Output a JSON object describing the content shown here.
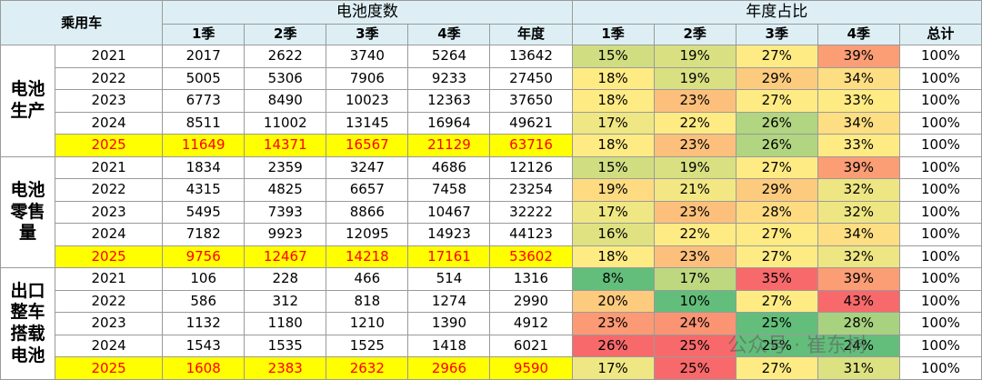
{
  "header": {
    "corner": "乘用车",
    "group1": "电池度数",
    "group2": "年度占比",
    "columns": [
      "1季",
      "2季",
      "3季",
      "4季",
      "年度",
      "1季",
      "2季",
      "3季",
      "4季",
      "总计"
    ]
  },
  "sections": [
    {
      "label": [
        "电池",
        "生产"
      ],
      "rows": [
        {
          "year": "2021",
          "cells": [
            2017,
            2622,
            3740,
            5264,
            13642,
            "15%",
            "19%",
            "27%",
            "39%",
            "100%"
          ]
        },
        {
          "year": "2022",
          "cells": [
            5005,
            5306,
            7906,
            9233,
            27450,
            "18%",
            "19%",
            "29%",
            "34%",
            "100%"
          ]
        },
        {
          "year": "2023",
          "cells": [
            6773,
            8490,
            10023,
            12363,
            37650,
            "18%",
            "23%",
            "27%",
            "33%",
            "100%"
          ]
        },
        {
          "year": "2024",
          "cells": [
            8511,
            11002,
            13145,
            16964,
            49621,
            "17%",
            "22%",
            "26%",
            "34%",
            "100%"
          ]
        },
        {
          "year": "2025",
          "cells": [
            11649,
            14371,
            16567,
            21129,
            63716,
            "18%",
            "23%",
            "26%",
            "33%",
            "100%"
          ]
        }
      ]
    },
    {
      "label": [
        "电池",
        "零售",
        "量"
      ],
      "rows": [
        {
          "year": "2021",
          "cells": [
            1834,
            2359,
            3247,
            4686,
            12126,
            "15%",
            "19%",
            "27%",
            "39%",
            "100%"
          ]
        },
        {
          "year": "2022",
          "cells": [
            4315,
            4825,
            6657,
            7458,
            23254,
            "19%",
            "21%",
            "29%",
            "32%",
            "100%"
          ]
        },
        {
          "year": "2023",
          "cells": [
            5495,
            7393,
            8866,
            10467,
            32222,
            "17%",
            "23%",
            "28%",
            "32%",
            "100%"
          ]
        },
        {
          "year": "2024",
          "cells": [
            7182,
            9923,
            12095,
            14923,
            44123,
            "16%",
            "22%",
            "27%",
            "34%",
            "100%"
          ]
        },
        {
          "year": "2025",
          "cells": [
            9756,
            12467,
            14218,
            17161,
            53602,
            "18%",
            "23%",
            "27%",
            "32%",
            "100%"
          ]
        }
      ]
    },
    {
      "label": [
        "出口",
        "整车",
        "搭载",
        "电池"
      ],
      "rows": [
        {
          "year": "2021",
          "cells": [
            106,
            228,
            466,
            514,
            1316,
            "8%",
            "17%",
            "35%",
            "39%",
            "100%"
          ]
        },
        {
          "year": "2022",
          "cells": [
            586,
            312,
            818,
            1274,
            2990,
            "20%",
            "10%",
            "27%",
            "43%",
            "100%"
          ]
        },
        {
          "year": "2023",
          "cells": [
            1132,
            1180,
            1210,
            1390,
            4912,
            "23%",
            "24%",
            "25%",
            "28%",
            "100%"
          ]
        },
        {
          "year": "2024",
          "cells": [
            1543,
            1535,
            1525,
            1418,
            6021,
            "26%",
            "25%",
            "25%",
            "24%",
            "100%"
          ]
        },
        {
          "year": "2025",
          "cells": [
            1608,
            2383,
            2632,
            2966,
            9590,
            "17%",
            "25%",
            "27%",
            "31%",
            "100%"
          ]
        }
      ]
    }
  ],
  "watermark": "公众号 · 崔东树"
}
